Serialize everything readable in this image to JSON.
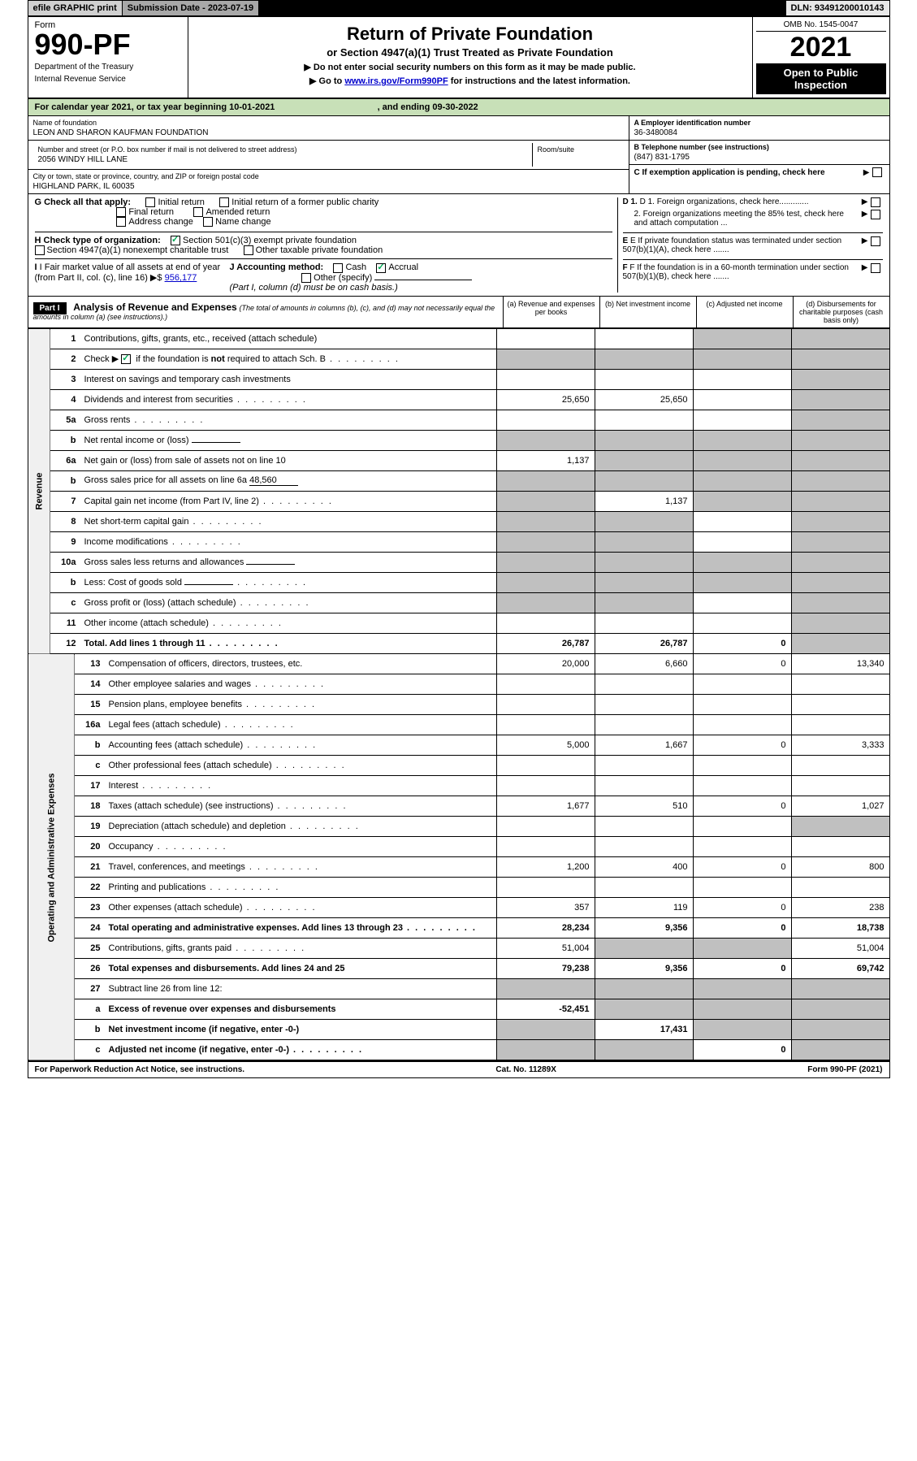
{
  "top_bar": {
    "efile": "efile GRAPHIC print",
    "sub_label": "Submission Date - 2023-07-19",
    "dln": "DLN: 93491200010143"
  },
  "header": {
    "form_label": "Form",
    "form_number": "990-PF",
    "dept": "Department of the Treasury",
    "irs": "Internal Revenue Service",
    "title": "Return of Private Foundation",
    "subtitle": "or Section 4947(a)(1) Trust Treated as Private Foundation",
    "inst1": "▶ Do not enter social security numbers on this form as it may be made public.",
    "inst2_pre": "▶ Go to ",
    "inst2_link": "www.irs.gov/Form990PF",
    "inst2_post": " for instructions and the latest information.",
    "omb": "OMB No. 1545-0047",
    "year": "2021",
    "open": "Open to Public Inspection"
  },
  "cal_year": {
    "pre": "For calendar year 2021, or tax year beginning ",
    "begin": "10-01-2021",
    "mid": " , and ending ",
    "end": "09-30-2022"
  },
  "info": {
    "name_lbl": "Name of foundation",
    "name": "LEON AND SHARON KAUFMAN FOUNDATION",
    "addr_lbl": "Number and street (or P.O. box number if mail is not delivered to street address)",
    "addr": "2056 WINDY HILL LANE",
    "room_lbl": "Room/suite",
    "city_lbl": "City or town, state or province, country, and ZIP or foreign postal code",
    "city": "HIGHLAND PARK, IL  60035",
    "ein_lbl": "A Employer identification number",
    "ein": "36-3480084",
    "tel_lbl": "B Telephone number (see instructions)",
    "tel": "(847) 831-1795",
    "c_lbl": "C If exemption application is pending, check here"
  },
  "checks": {
    "g_lbl": "G Check all that apply:",
    "g1": "Initial return",
    "g2": "Initial return of a former public charity",
    "g3": "Final return",
    "g4": "Amended return",
    "g5": "Address change",
    "g6": "Name change",
    "h_lbl": "H Check type of organization:",
    "h1": "Section 501(c)(3) exempt private foundation",
    "h2": "Section 4947(a)(1) nonexempt charitable trust",
    "h3": "Other taxable private foundation",
    "i_lbl": "I Fair market value of all assets at end of year (from Part II, col. (c), line 16)",
    "i_val": "956,177",
    "j_lbl": "J Accounting method:",
    "j1": "Cash",
    "j2": "Accrual",
    "j3": "Other (specify)",
    "j_note": "(Part I, column (d) must be on cash basis.)",
    "d1": "D 1. Foreign organizations, check here.............",
    "d2": "2. Foreign organizations meeting the 85% test, check here and attach computation ...",
    "e": "E  If private foundation status was terminated under section 507(b)(1)(A), check here .......",
    "f": "F  If the foundation is in a 60-month termination under section 507(b)(1)(B), check here .......",
    "arrow": "▶"
  },
  "part1": {
    "label": "Part I",
    "title": "Analysis of Revenue and Expenses",
    "note": "(The total of amounts in columns (b), (c), and (d) may not necessarily equal the amounts in column (a) (see instructions).)",
    "col_a": "(a)  Revenue and expenses per books",
    "col_b": "(b)  Net investment income",
    "col_c": "(c)  Adjusted net income",
    "col_d": "(d)  Disbursements for charitable purposes (cash basis only)"
  },
  "sections": {
    "revenue": "Revenue",
    "expenses": "Operating and Administrative Expenses"
  },
  "rows": [
    {
      "n": "1",
      "l": "Contributions, gifts, grants, etc., received (attach schedule)",
      "a": "",
      "b": "",
      "c": "",
      "d": "",
      "cs": true,
      "ds": true
    },
    {
      "n": "2",
      "l": "Check ▶ ☑ if the foundation is not required to attach Sch. B",
      "dots": true,
      "a": "",
      "b": "",
      "c": "",
      "d": "",
      "as": true,
      "bs": true,
      "cs": true,
      "ds": true,
      "checked": true
    },
    {
      "n": "3",
      "l": "Interest on savings and temporary cash investments",
      "a": "",
      "b": "",
      "c": "",
      "d": "",
      "ds": true
    },
    {
      "n": "4",
      "l": "Dividends and interest from securities",
      "dots": true,
      "a": "25,650",
      "b": "25,650",
      "c": "",
      "d": "",
      "ds": true
    },
    {
      "n": "5a",
      "l": "Gross rents",
      "dots": true,
      "a": "",
      "b": "",
      "c": "",
      "d": "",
      "ds": true
    },
    {
      "n": "b",
      "l": "Net rental income or (loss)",
      "inline": true,
      "a": "",
      "b": "",
      "c": "",
      "d": "",
      "as": true,
      "bs": true,
      "cs": true,
      "ds": true
    },
    {
      "n": "6a",
      "l": "Net gain or (loss) from sale of assets not on line 10",
      "a": "1,137",
      "b": "",
      "c": "",
      "d": "",
      "bs": true,
      "cs": true,
      "ds": true
    },
    {
      "n": "b",
      "l": "Gross sales price for all assets on line 6a",
      "inline": true,
      "inline_val": "48,560",
      "a": "",
      "b": "",
      "c": "",
      "d": "",
      "as": true,
      "bs": true,
      "cs": true,
      "ds": true
    },
    {
      "n": "7",
      "l": "Capital gain net income (from Part IV, line 2)",
      "dots": true,
      "a": "",
      "b": "1,137",
      "c": "",
      "d": "",
      "as": true,
      "cs": true,
      "ds": true
    },
    {
      "n": "8",
      "l": "Net short-term capital gain",
      "dots": true,
      "a": "",
      "b": "",
      "c": "",
      "d": "",
      "as": true,
      "bs": true,
      "ds": true
    },
    {
      "n": "9",
      "l": "Income modifications",
      "dots": true,
      "a": "",
      "b": "",
      "c": "",
      "d": "",
      "as": true,
      "bs": true,
      "ds": true
    },
    {
      "n": "10a",
      "l": "Gross sales less returns and allowances",
      "inline": true,
      "a": "",
      "b": "",
      "c": "",
      "d": "",
      "as": true,
      "bs": true,
      "cs": true,
      "ds": true
    },
    {
      "n": "b",
      "l": "Less: Cost of goods sold",
      "dots": true,
      "inline": true,
      "a": "",
      "b": "",
      "c": "",
      "d": "",
      "as": true,
      "bs": true,
      "cs": true,
      "ds": true
    },
    {
      "n": "c",
      "l": "Gross profit or (loss) (attach schedule)",
      "dots": true,
      "a": "",
      "b": "",
      "c": "",
      "d": "",
      "as": true,
      "bs": true,
      "ds": true
    },
    {
      "n": "11",
      "l": "Other income (attach schedule)",
      "dots": true,
      "a": "",
      "b": "",
      "c": "",
      "d": "",
      "ds": true
    },
    {
      "n": "12",
      "l": "Total. Add lines 1 through 11",
      "dots": true,
      "a": "26,787",
      "b": "26,787",
      "c": "0",
      "d": "",
      "ds": true,
      "bold": true
    }
  ],
  "exp_rows": [
    {
      "n": "13",
      "l": "Compensation of officers, directors, trustees, etc.",
      "a": "20,000",
      "b": "6,660",
      "c": "0",
      "d": "13,340"
    },
    {
      "n": "14",
      "l": "Other employee salaries and wages",
      "dots": true,
      "a": "",
      "b": "",
      "c": "",
      "d": ""
    },
    {
      "n": "15",
      "l": "Pension plans, employee benefits",
      "dots": true,
      "a": "",
      "b": "",
      "c": "",
      "d": ""
    },
    {
      "n": "16a",
      "l": "Legal fees (attach schedule)",
      "dots": true,
      "a": "",
      "b": "",
      "c": "",
      "d": ""
    },
    {
      "n": "b",
      "l": "Accounting fees (attach schedule)",
      "dots": true,
      "a": "5,000",
      "b": "1,667",
      "c": "0",
      "d": "3,333"
    },
    {
      "n": "c",
      "l": "Other professional fees (attach schedule)",
      "dots": true,
      "a": "",
      "b": "",
      "c": "",
      "d": ""
    },
    {
      "n": "17",
      "l": "Interest",
      "dots": true,
      "a": "",
      "b": "",
      "c": "",
      "d": ""
    },
    {
      "n": "18",
      "l": "Taxes (attach schedule) (see instructions)",
      "dots": true,
      "a": "1,677",
      "b": "510",
      "c": "0",
      "d": "1,027"
    },
    {
      "n": "19",
      "l": "Depreciation (attach schedule) and depletion",
      "dots": true,
      "a": "",
      "b": "",
      "c": "",
      "d": "",
      "ds": true
    },
    {
      "n": "20",
      "l": "Occupancy",
      "dots": true,
      "a": "",
      "b": "",
      "c": "",
      "d": ""
    },
    {
      "n": "21",
      "l": "Travel, conferences, and meetings",
      "dots": true,
      "a": "1,200",
      "b": "400",
      "c": "0",
      "d": "800"
    },
    {
      "n": "22",
      "l": "Printing and publications",
      "dots": true,
      "a": "",
      "b": "",
      "c": "",
      "d": ""
    },
    {
      "n": "23",
      "l": "Other expenses (attach schedule)",
      "dots": true,
      "a": "357",
      "b": "119",
      "c": "0",
      "d": "238"
    },
    {
      "n": "24",
      "l": "Total operating and administrative expenses. Add lines 13 through 23",
      "dots": true,
      "a": "28,234",
      "b": "9,356",
      "c": "0",
      "d": "18,738",
      "bold": true
    },
    {
      "n": "25",
      "l": "Contributions, gifts, grants paid",
      "dots": true,
      "a": "51,004",
      "b": "",
      "c": "",
      "d": "51,004",
      "bs": true,
      "cs": true
    },
    {
      "n": "26",
      "l": "Total expenses and disbursements. Add lines 24 and 25",
      "a": "79,238",
      "b": "9,356",
      "c": "0",
      "d": "69,742",
      "bold": true
    }
  ],
  "final_rows": [
    {
      "n": "27",
      "l": "Subtract line 26 from line 12:",
      "a": "",
      "b": "",
      "c": "",
      "d": "",
      "as": true,
      "bs": true,
      "cs": true,
      "ds": true
    },
    {
      "n": "a",
      "l": "Excess of revenue over expenses and disbursements",
      "a": "-52,451",
      "b": "",
      "c": "",
      "d": "",
      "bs": true,
      "cs": true,
      "ds": true,
      "bold": true
    },
    {
      "n": "b",
      "l": "Net investment income (if negative, enter -0-)",
      "a": "",
      "b": "17,431",
      "c": "",
      "d": "",
      "as": true,
      "cs": true,
      "ds": true,
      "bold": true
    },
    {
      "n": "c",
      "l": "Adjusted net income (if negative, enter -0-)",
      "dots": true,
      "a": "",
      "b": "",
      "c": "0",
      "d": "",
      "as": true,
      "bs": true,
      "ds": true,
      "bold": true
    }
  ],
  "footer": {
    "left": "For Paperwork Reduction Act Notice, see instructions.",
    "mid": "Cat. No. 11289X",
    "right": "Form 990-PF (2021)"
  }
}
